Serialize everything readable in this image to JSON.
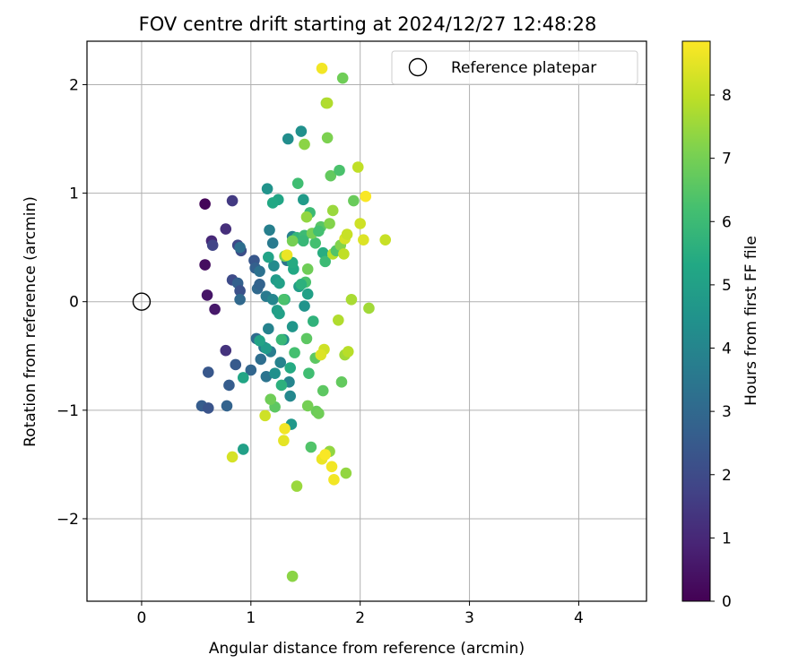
{
  "chart_data": {
    "type": "scatter",
    "title": "FOV centre drift starting at 2024/12/27 12:48:28",
    "xlabel": "Angular distance from reference (arcmin)",
    "ylabel": "Rotation from reference (arcmin)",
    "xlim": [
      -0.5,
      4.62
    ],
    "ylim": [
      -2.76,
      2.4
    ],
    "xticks": [
      0,
      1,
      2,
      3,
      4
    ],
    "yticks": [
      -2,
      -1,
      0,
      1,
      2
    ],
    "grid": true,
    "legend": {
      "position": "top-right",
      "entries": [
        "Reference platepar"
      ]
    },
    "reference": {
      "x": 0,
      "y": 0,
      "label": "Reference platepar"
    },
    "colorbar": {
      "label": "Hours from first FF file",
      "min": 0,
      "max": 8.85,
      "ticks": [
        0,
        1,
        2,
        3,
        4,
        5,
        6,
        7,
        8
      ],
      "colormap": "viridis"
    },
    "points": [
      {
        "x": 0.58,
        "y": 0.9,
        "h": 0.1
      },
      {
        "x": 0.58,
        "y": 0.34,
        "h": 0.3
      },
      {
        "x": 0.6,
        "y": 0.06,
        "h": 0.5
      },
      {
        "x": 0.67,
        "y": -0.07,
        "h": 0.6
      },
      {
        "x": 0.64,
        "y": 0.56,
        "h": 1.0
      },
      {
        "x": 0.77,
        "y": 0.67,
        "h": 1.2
      },
      {
        "x": 0.83,
        "y": 0.93,
        "h": 1.5
      },
      {
        "x": 0.65,
        "y": 0.52,
        "h": 1.8
      },
      {
        "x": 0.77,
        "y": -0.45,
        "h": 1.3
      },
      {
        "x": 0.83,
        "y": 0.2,
        "h": 2.0
      },
      {
        "x": 0.88,
        "y": 0.52,
        "h": 1.9
      },
      {
        "x": 0.91,
        "y": 0.47,
        "h": 2.1
      },
      {
        "x": 0.55,
        "y": -0.96,
        "h": 2.6
      },
      {
        "x": 0.61,
        "y": -0.98,
        "h": 2.3
      },
      {
        "x": 0.61,
        "y": -0.65,
        "h": 2.4
      },
      {
        "x": 0.78,
        "y": -0.96,
        "h": 2.8
      },
      {
        "x": 0.8,
        "y": -0.77,
        "h": 2.6
      },
      {
        "x": 0.86,
        "y": -0.58,
        "h": 2.5
      },
      {
        "x": 0.88,
        "y": 0.17,
        "h": 2.7
      },
      {
        "x": 0.9,
        "y": 0.1,
        "h": 2.2
      },
      {
        "x": 0.9,
        "y": 0.02,
        "h": 3.0
      },
      {
        "x": 0.9,
        "y": 0.5,
        "h": 3.2
      },
      {
        "x": 1.0,
        "y": -0.63,
        "h": 2.9
      },
      {
        "x": 1.03,
        "y": 0.38,
        "h": 2.4
      },
      {
        "x": 1.04,
        "y": 0.31,
        "h": 2.7
      },
      {
        "x": 1.05,
        "y": -0.34,
        "h": 3.1
      },
      {
        "x": 1.06,
        "y": 0.12,
        "h": 3.0
      },
      {
        "x": 1.08,
        "y": 0.28,
        "h": 3.3
      },
      {
        "x": 1.08,
        "y": 0.16,
        "h": 2.8
      },
      {
        "x": 1.09,
        "y": -0.53,
        "h": 3.2
      },
      {
        "x": 1.12,
        "y": -0.42,
        "h": 3.5
      },
      {
        "x": 1.14,
        "y": -0.69,
        "h": 3.4
      },
      {
        "x": 1.14,
        "y": 0.05,
        "h": 3.6
      },
      {
        "x": 1.16,
        "y": -0.25,
        "h": 3.9
      },
      {
        "x": 1.17,
        "y": 0.66,
        "h": 3.8
      },
      {
        "x": 1.15,
        "y": 1.04,
        "h": 4.5
      },
      {
        "x": 1.18,
        "y": -0.46,
        "h": 3.7
      },
      {
        "x": 1.2,
        "y": 0.54,
        "h": 3.6
      },
      {
        "x": 1.2,
        "y": 0.02,
        "h": 4.0
      },
      {
        "x": 1.21,
        "y": 0.33,
        "h": 4.2
      },
      {
        "x": 1.22,
        "y": -0.66,
        "h": 4.4
      },
      {
        "x": 1.23,
        "y": 0.2,
        "h": 4.8
      },
      {
        "x": 1.24,
        "y": -0.08,
        "h": 4.9
      },
      {
        "x": 1.25,
        "y": 0.94,
        "h": 5.2
      },
      {
        "x": 1.27,
        "y": -0.56,
        "h": 3.9
      },
      {
        "x": 1.3,
        "y": -0.35,
        "h": 4.3
      },
      {
        "x": 1.31,
        "y": 0.02,
        "h": 5.5
      },
      {
        "x": 1.33,
        "y": 0.38,
        "h": 3.4
      },
      {
        "x": 1.34,
        "y": 1.5,
        "h": 4.3
      },
      {
        "x": 1.35,
        "y": -0.74,
        "h": 4.0
      },
      {
        "x": 1.36,
        "y": -0.87,
        "h": 4.1
      },
      {
        "x": 1.37,
        "y": -1.13,
        "h": 4.7
      },
      {
        "x": 1.38,
        "y": 0.6,
        "h": 3.8
      },
      {
        "x": 1.38,
        "y": -0.23,
        "h": 4.6
      },
      {
        "x": 1.39,
        "y": 0.3,
        "h": 5.3
      },
      {
        "x": 1.4,
        "y": -0.47,
        "h": 6.2
      },
      {
        "x": 1.42,
        "y": 0.59,
        "h": 5.8
      },
      {
        "x": 1.44,
        "y": 0.14,
        "h": 4.9
      },
      {
        "x": 1.46,
        "y": 1.57,
        "h": 4.4
      },
      {
        "x": 1.48,
        "y": 0.94,
        "h": 4.8
      },
      {
        "x": 1.49,
        "y": -0.04,
        "h": 4.5
      },
      {
        "x": 1.49,
        "y": 0.61,
        "h": 6.0
      },
      {
        "x": 1.5,
        "y": 0.18,
        "h": 6.3
      },
      {
        "x": 1.51,
        "y": -0.34,
        "h": 6.6
      },
      {
        "x": 1.52,
        "y": 0.07,
        "h": 5.0
      },
      {
        "x": 1.53,
        "y": -0.66,
        "h": 6.1
      },
      {
        "x": 1.54,
        "y": 0.82,
        "h": 6.0
      },
      {
        "x": 1.55,
        "y": -1.34,
        "h": 6.4
      },
      {
        "x": 1.57,
        "y": -0.18,
        "h": 5.7
      },
      {
        "x": 1.59,
        "y": 0.54,
        "h": 6.2
      },
      {
        "x": 1.6,
        "y": -1.01,
        "h": 6.8
      },
      {
        "x": 1.62,
        "y": -1.03,
        "h": 6.9
      },
      {
        "x": 1.64,
        "y": 0.69,
        "h": 6.5
      },
      {
        "x": 1.66,
        "y": 0.45,
        "h": 5.5
      },
      {
        "x": 1.66,
        "y": -0.82,
        "h": 6.6
      },
      {
        "x": 1.67,
        "y": -0.44,
        "h": 8.2
      },
      {
        "x": 1.68,
        "y": 0.37,
        "h": 6.0
      },
      {
        "x": 1.7,
        "y": 1.51,
        "h": 7.1
      },
      {
        "x": 1.72,
        "y": -1.38,
        "h": 7.4
      },
      {
        "x": 1.73,
        "y": 1.16,
        "h": 6.7
      },
      {
        "x": 1.75,
        "y": 0.44,
        "h": 7.9
      },
      {
        "x": 1.75,
        "y": 0.84,
        "h": 7.5
      },
      {
        "x": 1.78,
        "y": 0.47,
        "h": 6.4
      },
      {
        "x": 1.8,
        "y": -0.17,
        "h": 7.8
      },
      {
        "x": 1.81,
        "y": 1.21,
        "h": 6.3
      },
      {
        "x": 1.82,
        "y": 0.52,
        "h": 7.2
      },
      {
        "x": 1.83,
        "y": -0.74,
        "h": 6.7
      },
      {
        "x": 1.84,
        "y": 2.06,
        "h": 6.9
      },
      {
        "x": 1.85,
        "y": 0.44,
        "h": 8.0
      },
      {
        "x": 1.86,
        "y": 0.58,
        "h": 8.3
      },
      {
        "x": 1.86,
        "y": -0.49,
        "h": 7.6
      },
      {
        "x": 1.87,
        "y": -1.58,
        "h": 7.4
      },
      {
        "x": 1.88,
        "y": 0.62,
        "h": 8.1
      },
      {
        "x": 1.89,
        "y": -0.46,
        "h": 7.9
      },
      {
        "x": 1.92,
        "y": 0.02,
        "h": 7.7
      },
      {
        "x": 1.94,
        "y": 0.93,
        "h": 6.8
      },
      {
        "x": 1.98,
        "y": 1.24,
        "h": 8.0
      },
      {
        "x": 2.0,
        "y": 0.72,
        "h": 8.2
      },
      {
        "x": 2.03,
        "y": 0.57,
        "h": 8.4
      },
      {
        "x": 2.05,
        "y": 0.97,
        "h": 8.8
      },
      {
        "x": 2.08,
        "y": -0.06,
        "h": 7.6
      },
      {
        "x": 2.23,
        "y": 0.57,
        "h": 8.1
      },
      {
        "x": 1.43,
        "y": 1.09,
        "h": 6.1
      },
      {
        "x": 1.49,
        "y": 1.45,
        "h": 7.3
      },
      {
        "x": 1.51,
        "y": 0.78,
        "h": 7.4
      },
      {
        "x": 1.38,
        "y": 0.36,
        "h": 5.4
      },
      {
        "x": 1.31,
        "y": 0.42,
        "h": 7.1
      },
      {
        "x": 1.33,
        "y": 0.43,
        "h": 8.6
      },
      {
        "x": 1.2,
        "y": 0.91,
        "h": 5.3
      },
      {
        "x": 1.28,
        "y": -0.77,
        "h": 5.6
      },
      {
        "x": 1.22,
        "y": -0.97,
        "h": 6.6
      },
      {
        "x": 1.18,
        "y": -0.9,
        "h": 6.9
      },
      {
        "x": 1.13,
        "y": -1.05,
        "h": 8.2
      },
      {
        "x": 1.3,
        "y": -1.28,
        "h": 8.5
      },
      {
        "x": 1.31,
        "y": -1.17,
        "h": 8.7
      },
      {
        "x": 1.42,
        "y": -1.7,
        "h": 7.5
      },
      {
        "x": 1.38,
        "y": -2.53,
        "h": 7.3
      },
      {
        "x": 1.65,
        "y": -1.45,
        "h": 8.6
      },
      {
        "x": 1.68,
        "y": -1.41,
        "h": 8.8
      },
      {
        "x": 1.74,
        "y": -1.52,
        "h": 8.7
      },
      {
        "x": 1.76,
        "y": -1.64,
        "h": 8.7
      },
      {
        "x": 0.83,
        "y": -1.43,
        "h": 8.3
      },
      {
        "x": 0.93,
        "y": -1.36,
        "h": 5.0
      },
      {
        "x": 0.93,
        "y": -0.7,
        "h": 5.2
      },
      {
        "x": 1.16,
        "y": 0.41,
        "h": 5.1
      },
      {
        "x": 1.26,
        "y": -0.11,
        "h": 5.0
      },
      {
        "x": 1.36,
        "y": -0.61,
        "h": 5.4
      },
      {
        "x": 1.46,
        "y": 0.16,
        "h": 5.6
      },
      {
        "x": 1.52,
        "y": 0.3,
        "h": 6.9
      },
      {
        "x": 1.56,
        "y": 0.63,
        "h": 7.0
      },
      {
        "x": 1.59,
        "y": -0.52,
        "h": 6.6
      },
      {
        "x": 1.64,
        "y": -0.49,
        "h": 8.4
      },
      {
        "x": 1.65,
        "y": 2.15,
        "h": 8.7
      },
      {
        "x": 1.69,
        "y": 1.83,
        "h": 7.6
      },
      {
        "x": 1.7,
        "y": 1.83,
        "h": 7.8
      },
      {
        "x": 1.72,
        "y": 0.72,
        "h": 7.2
      },
      {
        "x": 1.48,
        "y": 0.56,
        "h": 5.9
      },
      {
        "x": 1.38,
        "y": 0.56,
        "h": 7.0
      },
      {
        "x": 1.3,
        "y": 0.02,
        "h": 6.3
      },
      {
        "x": 1.28,
        "y": -0.35,
        "h": 5.9
      },
      {
        "x": 1.52,
        "y": -0.96,
        "h": 7.0
      },
      {
        "x": 1.14,
        "y": -0.43,
        "h": 4.8
      },
      {
        "x": 1.08,
        "y": -0.36,
        "h": 5.1
      },
      {
        "x": 1.26,
        "y": 0.17,
        "h": 5.0
      },
      {
        "x": 1.62,
        "y": 0.65,
        "h": 6.2
      }
    ]
  }
}
